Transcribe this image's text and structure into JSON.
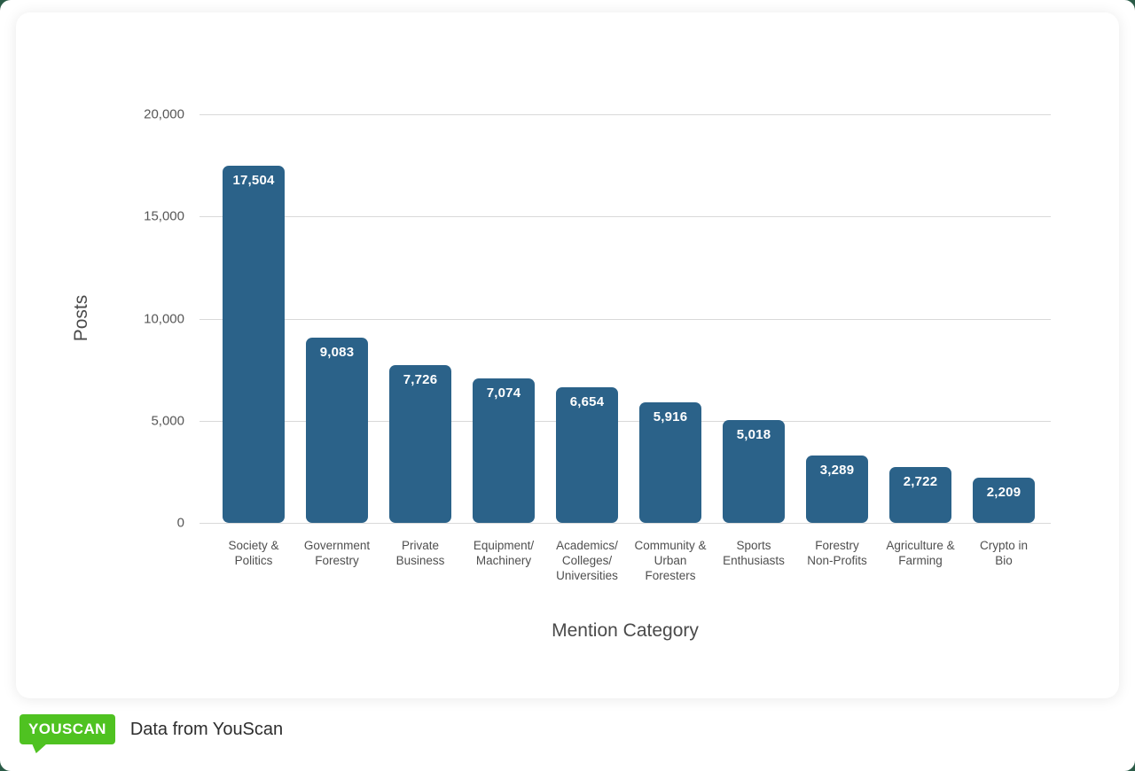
{
  "chart_data": {
    "type": "bar",
    "title": "",
    "xlabel": "Mention Category",
    "ylabel": "Posts",
    "categories": [
      "Society & Politics",
      "Government Forestry",
      "Private Business",
      "Equipment/Machinery",
      "Academics/Colleges/Universities",
      "Community & Urban Foresters",
      "Sports Enthusiasts",
      "Forestry Non-Profits",
      "Agriculture & Farming",
      "Crypto in Bio"
    ],
    "category_label_lines": [
      [
        "Society &",
        "Politics"
      ],
      [
        "Government",
        "Forestry"
      ],
      [
        "Private",
        "Business"
      ],
      [
        "Equipment/",
        "Machinery"
      ],
      [
        "Academics/",
        "Colleges/",
        "Universities"
      ],
      [
        "Community &",
        "Urban",
        "Foresters"
      ],
      [
        "Sports",
        "Enthusiasts"
      ],
      [
        "Forestry",
        "Non-Profits"
      ],
      [
        "Agriculture &",
        "Farming"
      ],
      [
        "Crypto in",
        "Bio"
      ]
    ],
    "values": [
      17504,
      9083,
      7726,
      7074,
      6654,
      5916,
      5018,
      3289,
      2722,
      2209
    ],
    "value_labels": [
      "17,504",
      "9,083",
      "7,726",
      "7,074",
      "6,654",
      "5,916",
      "5,018",
      "3,289",
      "2,722",
      "2,209"
    ],
    "ylim": [
      0,
      20000
    ],
    "ytick_values": [
      0,
      5000,
      10000,
      15000,
      20000
    ],
    "ytick_labels": [
      "0",
      "5,000",
      "10,000",
      "15,000",
      "20,000"
    ],
    "grid": true,
    "legend": false,
    "bar_color": "#2b6289",
    "value_label_color": "#ffffff",
    "gridline_color": "#d9d9d9"
  },
  "footer": {
    "logo_text": "YOUSCAN",
    "logo_color": "#4fc221",
    "caption": "Data from YouScan"
  }
}
